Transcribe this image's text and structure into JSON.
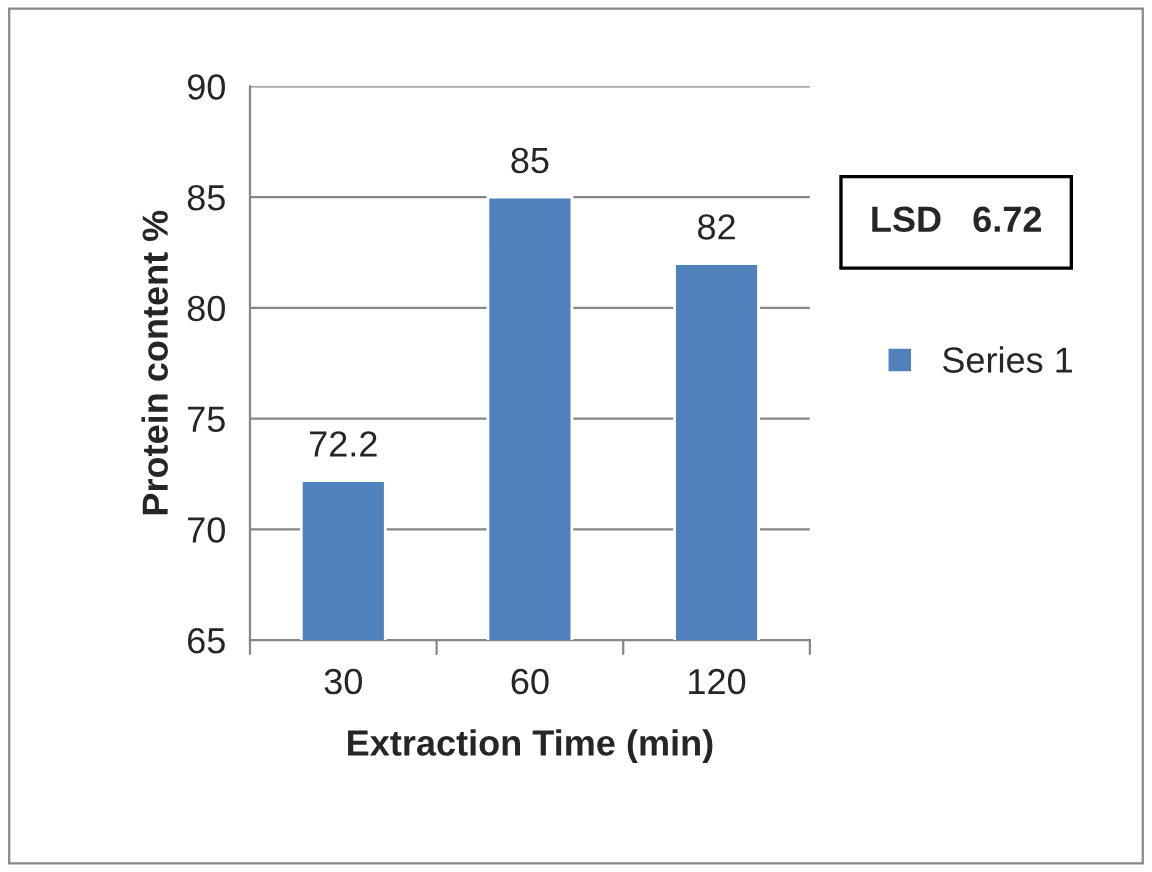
{
  "chart_data": {
    "type": "bar",
    "xlabel": "Extraction Time (min)",
    "ylabel": "Protein content %",
    "categories": [
      "30",
      "60",
      "120"
    ],
    "series": [
      {
        "name": "Series 1",
        "color": "#4f81bd",
        "values": [
          72.2,
          85,
          82
        ]
      }
    ],
    "ylim": [
      65,
      90
    ],
    "yticks": [
      65,
      70,
      75,
      80,
      85,
      90
    ],
    "grid": "y",
    "legend": "right",
    "data_labels": true,
    "annotations": [
      "LSD   6.72"
    ]
  }
}
